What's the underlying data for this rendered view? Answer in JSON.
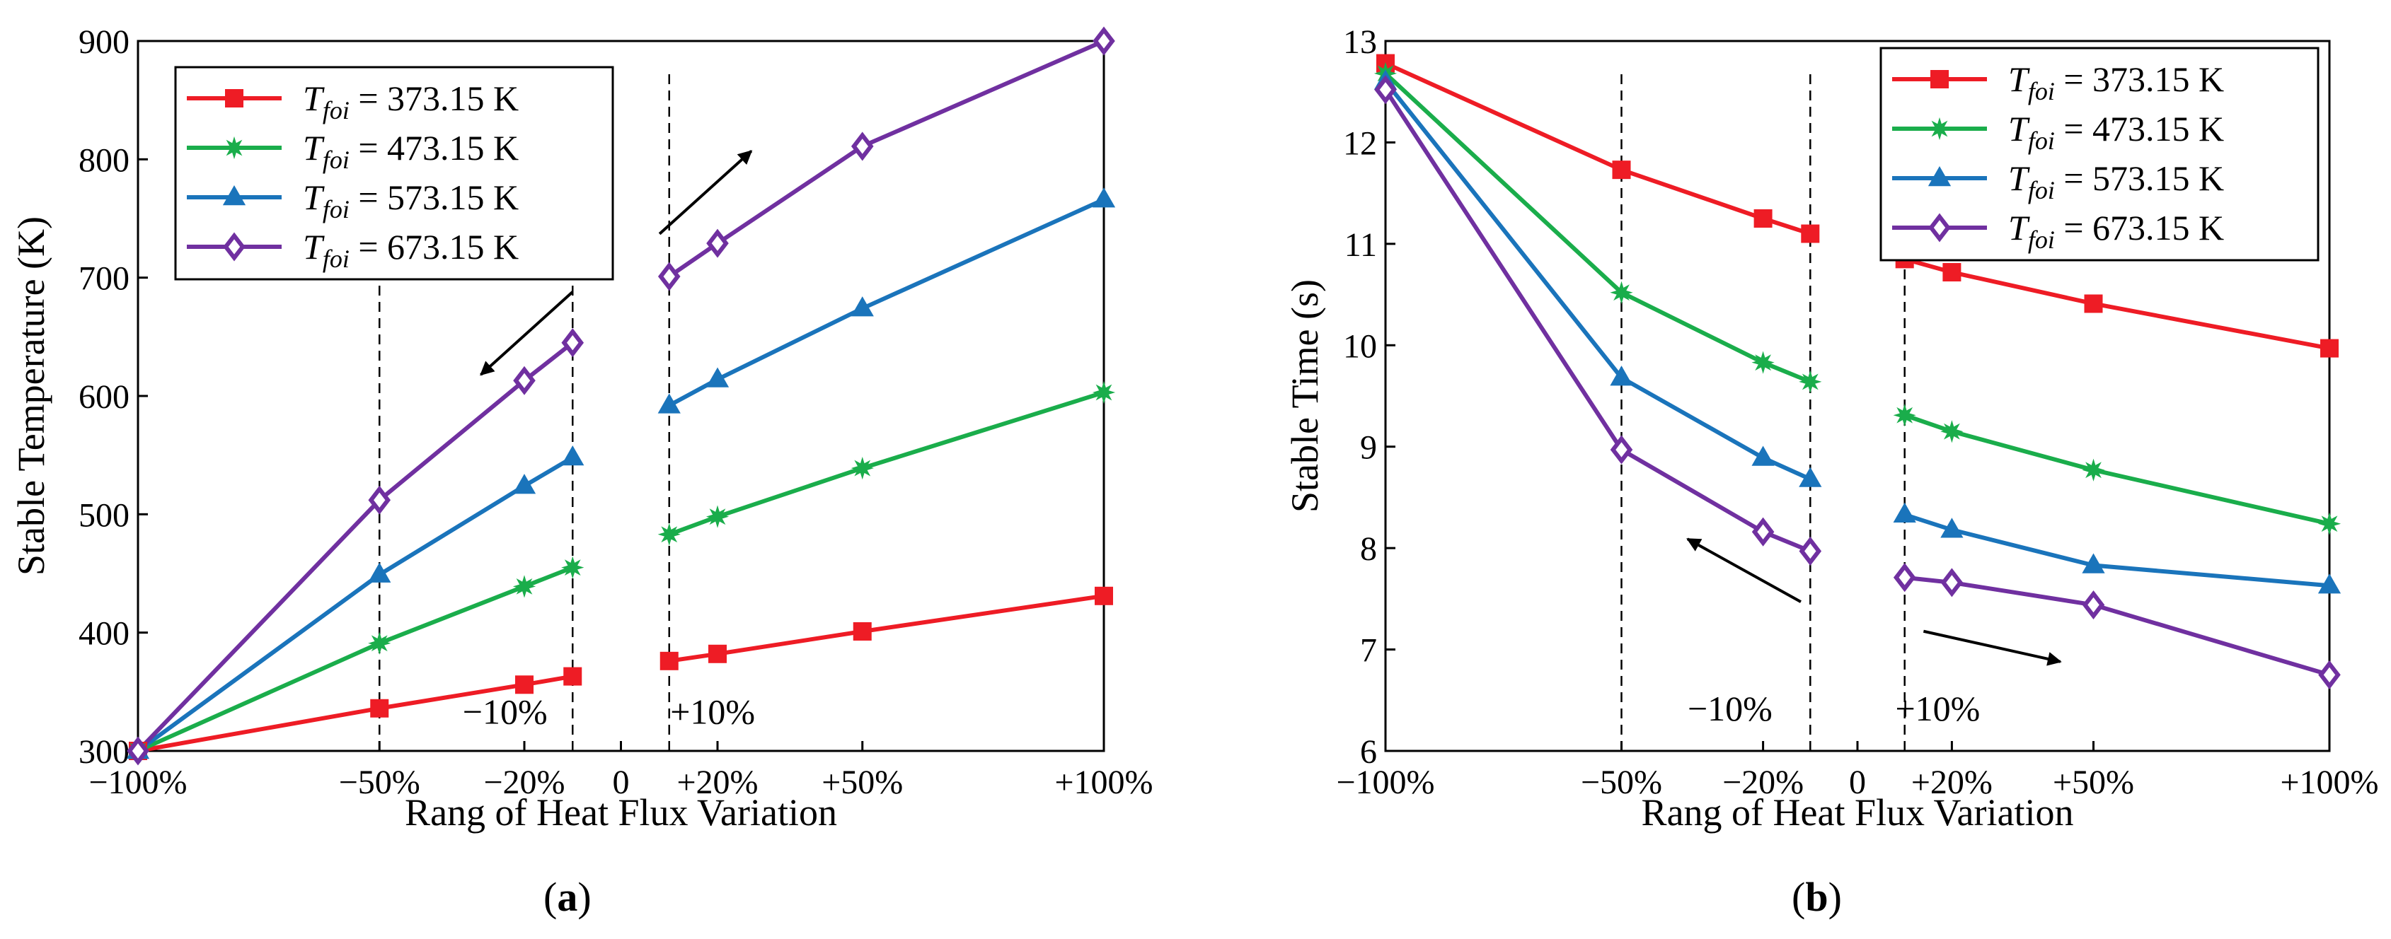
{
  "figure": {
    "panel_labels": [
      {
        "open": "(",
        "letter": "a",
        "close": ")"
      },
      {
        "open": "(",
        "letter": "b",
        "close": ")"
      }
    ]
  },
  "chart_data": [
    {
      "type": "line",
      "title": "",
      "xlabel": "Rang of Heat Flux Variation",
      "ylabel": "Stable Temperature (K)",
      "xlim": [
        -100,
        100
      ],
      "ylim": [
        300,
        900
      ],
      "xticks": [
        -100,
        -50,
        -20,
        0,
        20,
        50,
        100
      ],
      "xtick_labels": [
        "−100%",
        "−50%",
        "−20%",
        "0",
        "+20%",
        "+50%",
        "+100%"
      ],
      "yticks": [
        300,
        400,
        500,
        600,
        700,
        800,
        900
      ],
      "ytick_labels": [
        "300",
        "400",
        "500",
        "600",
        "700",
        "800",
        "900"
      ],
      "legend_position": "top-left",
      "legend_prefix": "T",
      "legend_subscript": "foi",
      "series": [
        {
          "name": "= 373.15 K",
          "color": "#ee1c25",
          "marker": "square",
          "segments": [
            {
              "x": [
                -100,
                -50,
                -20,
                -10
              ],
              "y": [
                300,
                336,
                356,
                363
              ]
            },
            {
              "x": [
                10,
                20,
                50,
                100
              ],
              "y": [
                376,
                382,
                401,
                431
              ]
            }
          ]
        },
        {
          "name": "= 473.15 K",
          "color": "#1aad4b",
          "marker": "star",
          "segments": [
            {
              "x": [
                -100,
                -50,
                -20,
                -10
              ],
              "y": [
                300,
                391,
                439,
                455
              ]
            },
            {
              "x": [
                10,
                20,
                50,
                100
              ],
              "y": [
                483,
                498,
                539,
                603
              ]
            }
          ]
        },
        {
          "name": "= 573.15 K",
          "color": "#1a74bb",
          "marker": "triangle",
          "segments": [
            {
              "x": [
                -100,
                -50,
                -20,
                -10
              ],
              "y": [
                300,
                449,
                524,
                548
              ]
            },
            {
              "x": [
                10,
                20,
                50,
                100
              ],
              "y": [
                592,
                614,
                674,
                766
              ]
            }
          ]
        },
        {
          "name": "= 673.15 K",
          "color": "#7030a0",
          "marker": "diamond",
          "segments": [
            {
              "x": [
                -100,
                -50,
                -20,
                -10
              ],
              "y": [
                300,
                512,
                613,
                645
              ]
            },
            {
              "x": [
                10,
                20,
                50,
                100
              ],
              "y": [
                701,
                729,
                811,
                900
              ]
            }
          ]
        }
      ],
      "reference_lines_x": [
        -50,
        -10,
        10
      ],
      "annotations": [
        {
          "text": "−10%",
          "x": -24,
          "y": 323
        },
        {
          "text": "+10%",
          "x": 19,
          "y": 323
        }
      ],
      "arrows": [
        {
          "from": [
            -10,
            688
          ],
          "to": [
            -29,
            618
          ]
        },
        {
          "from": [
            8,
            737
          ],
          "to": [
            27,
            807
          ]
        }
      ]
    },
    {
      "type": "line",
      "title": "",
      "xlabel": "Rang of Heat Flux Variation",
      "ylabel": "Stable Time (s)",
      "xlim": [
        -100,
        100
      ],
      "ylim": [
        6,
        13
      ],
      "xticks": [
        -100,
        -50,
        -20,
        0,
        20,
        50,
        100
      ],
      "xtick_labels": [
        "−100%",
        "−50%",
        "−20%",
        "0",
        "+20%",
        "+50%",
        "+100%"
      ],
      "yticks": [
        6,
        7,
        8,
        9,
        10,
        11,
        12,
        13
      ],
      "ytick_labels": [
        "6",
        "7",
        "8",
        "9",
        "10",
        "11",
        "12",
        "13"
      ],
      "legend_position": "top-right",
      "legend_prefix": "T",
      "legend_subscript": "foi",
      "series": [
        {
          "name": "= 373.15 K",
          "color": "#ee1c25",
          "marker": "square",
          "segments": [
            {
              "x": [
                -100,
                -50,
                -20,
                -10
              ],
              "y": [
                12.78,
                11.73,
                11.25,
                11.1
              ]
            },
            {
              "x": [
                10,
                20,
                50,
                100
              ],
              "y": [
                10.85,
                10.72,
                10.41,
                9.97
              ]
            }
          ]
        },
        {
          "name": "= 473.15 K",
          "color": "#1aad4b",
          "marker": "star",
          "segments": [
            {
              "x": [
                -100,
                -50,
                -20,
                -10
              ],
              "y": [
                12.68,
                10.52,
                9.83,
                9.64
              ]
            },
            {
              "x": [
                10,
                20,
                50,
                100
              ],
              "y": [
                9.31,
                9.15,
                8.77,
                8.24
              ]
            }
          ]
        },
        {
          "name": "= 573.15 K",
          "color": "#1a74bb",
          "marker": "triangle",
          "segments": [
            {
              "x": [
                -100,
                -50,
                -20,
                -10
              ],
              "y": [
                12.6,
                9.68,
                8.89,
                8.68
              ]
            },
            {
              "x": [
                10,
                20,
                50,
                100
              ],
              "y": [
                8.33,
                8.18,
                7.83,
                7.63
              ]
            }
          ]
        },
        {
          "name": "= 673.15 K",
          "color": "#7030a0",
          "marker": "diamond",
          "segments": [
            {
              "x": [
                -100,
                -50,
                -20,
                -10
              ],
              "y": [
                12.52,
                8.97,
                8.16,
                7.97
              ]
            },
            {
              "x": [
                10,
                20,
                50,
                100
              ],
              "y": [
                7.71,
                7.66,
                7.44,
                6.75
              ]
            }
          ]
        }
      ],
      "reference_lines_x": [
        -50,
        -10,
        10
      ],
      "annotations": [
        {
          "text": "−10%",
          "x": -27,
          "y": 6.3
        },
        {
          "text": "+10%",
          "x": 17,
          "y": 6.3
        }
      ],
      "arrows": [
        {
          "from": [
            -12,
            7.47
          ],
          "to": [
            -36,
            8.09
          ]
        },
        {
          "from": [
            14,
            7.18
          ],
          "to": [
            43,
            6.88
          ]
        }
      ]
    }
  ]
}
